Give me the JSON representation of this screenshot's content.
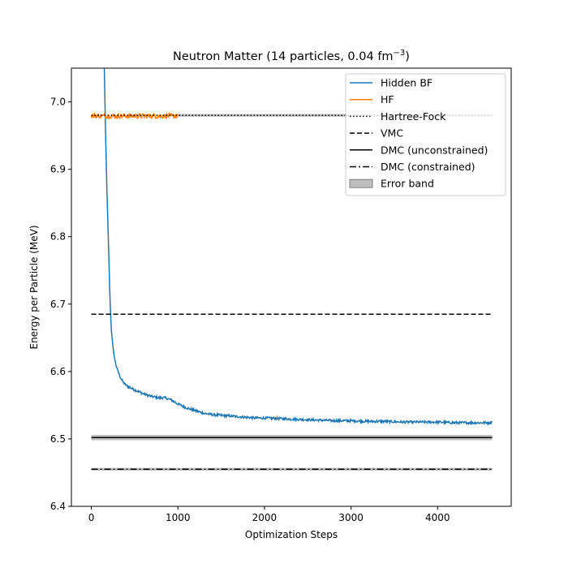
{
  "chart_data": {
    "type": "line",
    "title_main": "Neutron Matter (14 particles, 0.04 fm",
    "title_sup": "−3",
    "title_end": ")",
    "xlabel": "Optimization Steps",
    "ylabel": "Energy per Particle (MeV)",
    "xlim": [
      -230,
      4850
    ],
    "ylim": [
      6.4,
      7.05
    ],
    "xticks": [
      0,
      1000,
      2000,
      3000,
      4000
    ],
    "yticks": [
      6.4,
      6.5,
      6.6,
      6.7,
      6.8,
      6.9,
      7.0
    ],
    "ytick_labels": [
      "6.4",
      "6.5",
      "6.6",
      "6.7",
      "6.8",
      "6.9",
      "7.0"
    ],
    "legend_location": "top-right",
    "series": [
      {
        "name": "Hidden BF",
        "color": "#1f77b4",
        "style": "solid",
        "points": [
          [
            150,
            7.05
          ],
          [
            165,
            6.95
          ],
          [
            180,
            6.87
          ],
          [
            200,
            6.78
          ],
          [
            215,
            6.71
          ],
          [
            230,
            6.665
          ],
          [
            250,
            6.635
          ],
          [
            275,
            6.615
          ],
          [
            300,
            6.603
          ],
          [
            340,
            6.59
          ],
          [
            380,
            6.582
          ],
          [
            420,
            6.578
          ],
          [
            480,
            6.574
          ],
          [
            550,
            6.57
          ],
          [
            620,
            6.566
          ],
          [
            700,
            6.563
          ],
          [
            780,
            6.561
          ],
          [
            850,
            6.561
          ],
          [
            920,
            6.558
          ],
          [
            1000,
            6.552
          ],
          [
            1100,
            6.546
          ],
          [
            1200,
            6.542
          ],
          [
            1300,
            6.538
          ],
          [
            1400,
            6.536
          ],
          [
            1500,
            6.535
          ],
          [
            1600,
            6.534
          ],
          [
            1700,
            6.533
          ],
          [
            1800,
            6.532
          ],
          [
            1900,
            6.531
          ],
          [
            2000,
            6.531
          ],
          [
            2200,
            6.53
          ],
          [
            2400,
            6.529
          ],
          [
            2600,
            6.528
          ],
          [
            2800,
            6.527
          ],
          [
            3000,
            6.527
          ],
          [
            3200,
            6.526
          ],
          [
            3400,
            6.526
          ],
          [
            3600,
            6.525
          ],
          [
            3800,
            6.525
          ],
          [
            4000,
            6.525
          ],
          [
            4200,
            6.524
          ],
          [
            4400,
            6.524
          ],
          [
            4600,
            6.524
          ],
          [
            4630,
            6.526
          ]
        ],
        "noise": 0.0018
      },
      {
        "name": "HF",
        "color": "#ff7f0e",
        "style": "solid",
        "points": [
          [
            0,
            6.979
          ],
          [
            1000,
            6.979
          ]
        ],
        "noise": 0.0035
      },
      {
        "name": "Hartree-Fock",
        "color": "#000000",
        "style": "dotted",
        "points": [
          [
            0,
            6.98
          ],
          [
            4630,
            6.98
          ]
        ]
      },
      {
        "name": "VMC",
        "color": "#000000",
        "style": "dashed",
        "points": [
          [
            0,
            6.685
          ],
          [
            4630,
            6.685
          ]
        ]
      },
      {
        "name": "DMC (unconstrained)",
        "color": "#000000",
        "style": "solid",
        "points": [
          [
            0,
            6.502
          ],
          [
            4630,
            6.502
          ]
        ]
      },
      {
        "name": "DMC (constrained)",
        "color": "#000000",
        "style": "dashdot",
        "points": [
          [
            0,
            6.455
          ],
          [
            4630,
            6.455
          ]
        ]
      }
    ],
    "bands": [
      {
        "name": "Error band",
        "color": "#808080",
        "x": [
          0,
          4630
        ],
        "y": [
          6.498,
          6.506
        ]
      },
      {
        "x": [
          0,
          4630
        ],
        "y": [
          6.453,
          6.457
        ]
      },
      {
        "x": [
          1000,
          4630
        ],
        "y": [
          6.978,
          6.982
        ]
      }
    ],
    "legend": [
      "Hidden BF",
      "HF",
      "Hartree-Fock",
      "VMC",
      "DMC (unconstrained)",
      "DMC (constrained)",
      "Error band"
    ]
  }
}
